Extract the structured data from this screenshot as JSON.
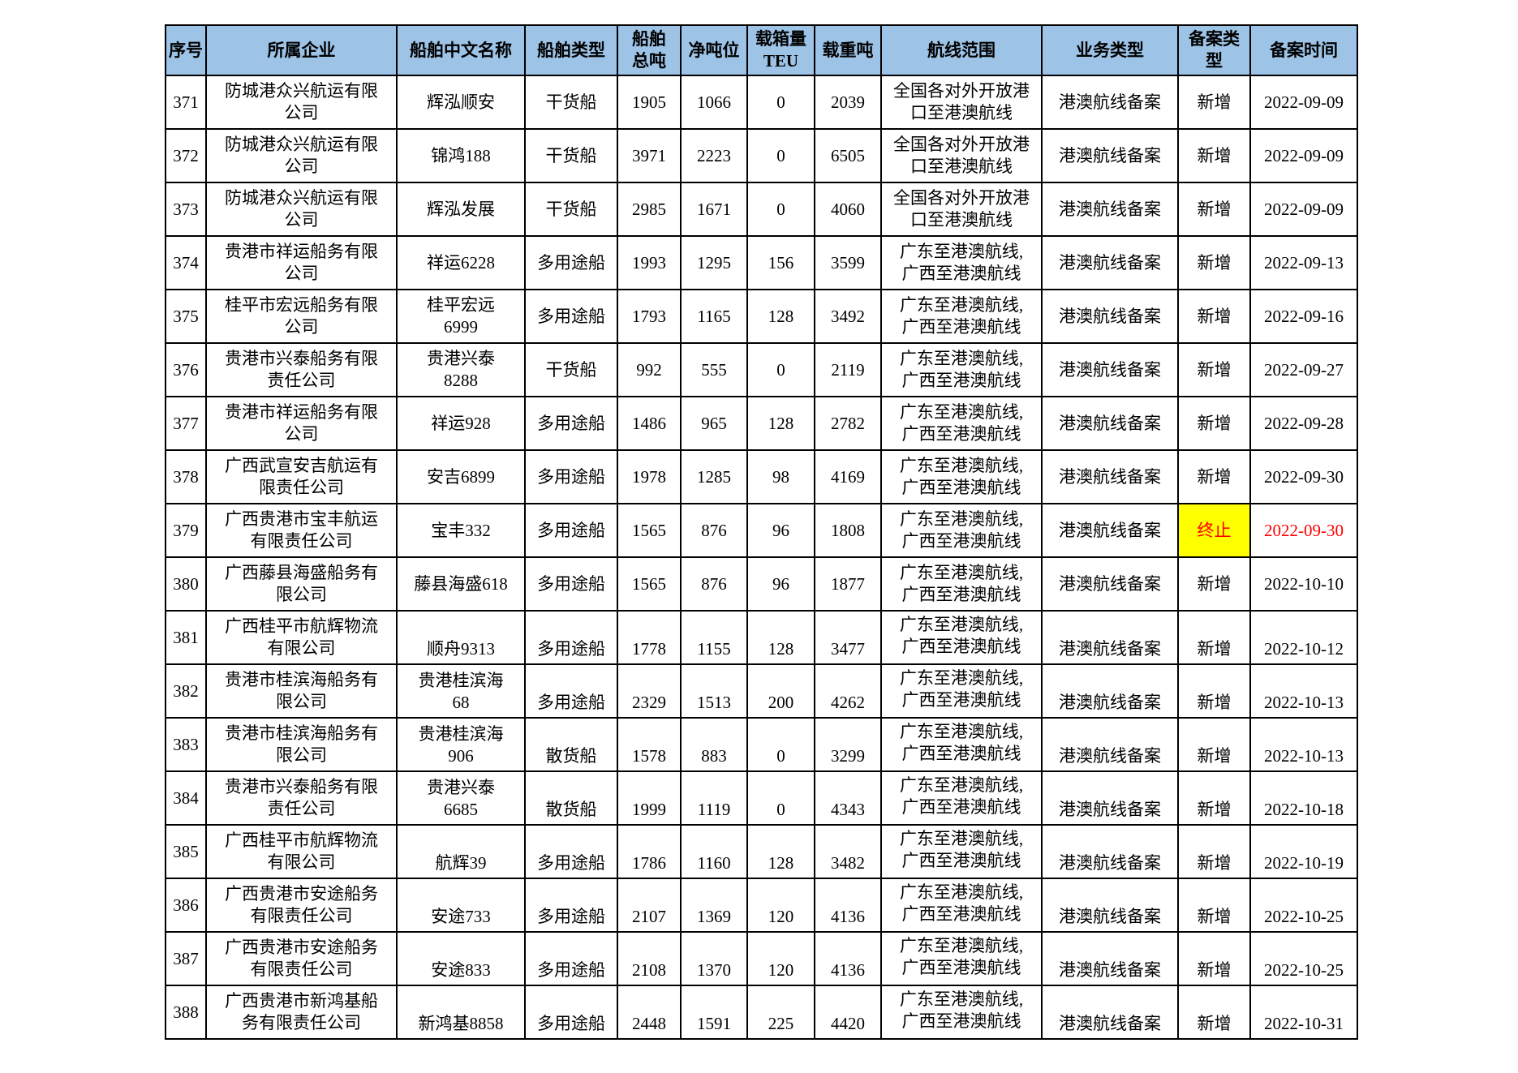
{
  "colors": {
    "header_bg": "#9DC3E6",
    "highlight_bg": "#FFFF00",
    "alert_text": "#FF0000",
    "border": "#000000"
  },
  "table": {
    "columns": [
      {
        "key": "index",
        "label": "序号"
      },
      {
        "key": "company",
        "label": "所属企业"
      },
      {
        "key": "ship_name",
        "label": "船舶中文名称"
      },
      {
        "key": "ship_type",
        "label": "船舶类型"
      },
      {
        "key": "gross_tonnage",
        "label": "船舶\n总吨"
      },
      {
        "key": "net_tonnage",
        "label": "净吨位"
      },
      {
        "key": "teu",
        "label": "载箱量\nTEU"
      },
      {
        "key": "dwt",
        "label": "载重吨"
      },
      {
        "key": "route",
        "label": "航线范围"
      },
      {
        "key": "business_type",
        "label": "业务类型"
      },
      {
        "key": "filing_type",
        "label": "备案类\n型"
      },
      {
        "key": "filing_date",
        "label": "备案时间"
      }
    ],
    "rows": [
      {
        "index": "371",
        "company": "防城港众兴航运有限\n公司",
        "ship_name": "辉泓顺安",
        "ship_type": "干货船",
        "gross_tonnage": "1905",
        "net_tonnage": "1066",
        "teu": "0",
        "dwt": "2039",
        "route": "全国各对外开放港\n口至港澳航线",
        "business_type": "港澳航线备案",
        "filing_type": "新增",
        "filing_date": "2022-09-09",
        "terminated": false,
        "bottom_aligned": false
      },
      {
        "index": "372",
        "company": "防城港众兴航运有限\n公司",
        "ship_name": "锦鸿188",
        "ship_type": "干货船",
        "gross_tonnage": "3971",
        "net_tonnage": "2223",
        "teu": "0",
        "dwt": "6505",
        "route": "全国各对外开放港\n口至港澳航线",
        "business_type": "港澳航线备案",
        "filing_type": "新增",
        "filing_date": "2022-09-09",
        "terminated": false,
        "bottom_aligned": false
      },
      {
        "index": "373",
        "company": "防城港众兴航运有限\n公司",
        "ship_name": "辉泓发展",
        "ship_type": "干货船",
        "gross_tonnage": "2985",
        "net_tonnage": "1671",
        "teu": "0",
        "dwt": "4060",
        "route": "全国各对外开放港\n口至港澳航线",
        "business_type": "港澳航线备案",
        "filing_type": "新增",
        "filing_date": "2022-09-09",
        "terminated": false,
        "bottom_aligned": false
      },
      {
        "index": "374",
        "company": "贵港市祥运船务有限\n公司",
        "ship_name": "祥运6228",
        "ship_type": "多用途船",
        "gross_tonnage": "1993",
        "net_tonnage": "1295",
        "teu": "156",
        "dwt": "3599",
        "route": "广东至港澳航线,\n广西至港澳航线",
        "business_type": "港澳航线备案",
        "filing_type": "新增",
        "filing_date": "2022-09-13",
        "terminated": false,
        "bottom_aligned": false
      },
      {
        "index": "375",
        "company": "桂平市宏远船务有限\n公司",
        "ship_name": "桂平宏远\n6999",
        "ship_type": "多用途船",
        "gross_tonnage": "1793",
        "net_tonnage": "1165",
        "teu": "128",
        "dwt": "3492",
        "route": "广东至港澳航线,\n广西至港澳航线",
        "business_type": "港澳航线备案",
        "filing_type": "新增",
        "filing_date": "2022-09-16",
        "terminated": false,
        "bottom_aligned": false
      },
      {
        "index": "376",
        "company": "贵港市兴泰船务有限\n责任公司",
        "ship_name": "贵港兴泰\n8288",
        "ship_type": "干货船",
        "gross_tonnage": "992",
        "net_tonnage": "555",
        "teu": "0",
        "dwt": "2119",
        "route": "广东至港澳航线,\n广西至港澳航线",
        "business_type": "港澳航线备案",
        "filing_type": "新增",
        "filing_date": "2022-09-27",
        "terminated": false,
        "bottom_aligned": false
      },
      {
        "index": "377",
        "company": "贵港市祥运船务有限\n公司",
        "ship_name": "祥运928",
        "ship_type": "多用途船",
        "gross_tonnage": "1486",
        "net_tonnage": "965",
        "teu": "128",
        "dwt": "2782",
        "route": "广东至港澳航线,\n广西至港澳航线",
        "business_type": "港澳航线备案",
        "filing_type": "新增",
        "filing_date": "2022-09-28",
        "terminated": false,
        "bottom_aligned": false
      },
      {
        "index": "378",
        "company": "广西武宣安吉航运有\n限责任公司",
        "ship_name": "安吉6899",
        "ship_type": "多用途船",
        "gross_tonnage": "1978",
        "net_tonnage": "1285",
        "teu": "98",
        "dwt": "4169",
        "route": "广东至港澳航线,\n广西至港澳航线",
        "business_type": "港澳航线备案",
        "filing_type": "新增",
        "filing_date": "2022-09-30",
        "terminated": false,
        "bottom_aligned": false
      },
      {
        "index": "379",
        "company": "广西贵港市宝丰航运\n有限责任公司",
        "ship_name": "宝丰332",
        "ship_type": "多用途船",
        "gross_tonnage": "1565",
        "net_tonnage": "876",
        "teu": "96",
        "dwt": "1808",
        "route": "广东至港澳航线,\n广西至港澳航线",
        "business_type": "港澳航线备案",
        "filing_type": "终止",
        "filing_date": "2022-09-30",
        "terminated": true,
        "bottom_aligned": false
      },
      {
        "index": "380",
        "company": "广西藤县海盛船务有\n限公司",
        "ship_name": "藤县海盛618",
        "ship_type": "多用途船",
        "gross_tonnage": "1565",
        "net_tonnage": "876",
        "teu": "96",
        "dwt": "1877",
        "route": "广东至港澳航线,\n广西至港澳航线",
        "business_type": "港澳航线备案",
        "filing_type": "新增",
        "filing_date": "2022-10-10",
        "terminated": false,
        "bottom_aligned": false
      },
      {
        "index": "381",
        "company": "广西桂平市航辉物流\n有限公司",
        "ship_name": "顺舟9313",
        "ship_type": "多用途船",
        "gross_tonnage": "1778",
        "net_tonnage": "1155",
        "teu": "128",
        "dwt": "3477",
        "route": "广东至港澳航线,\n广西至港澳航线",
        "business_type": "港澳航线备案",
        "filing_type": "新增",
        "filing_date": "2022-10-12",
        "terminated": false,
        "bottom_aligned": true
      },
      {
        "index": "382",
        "company": "贵港市桂滨海船务有\n限公司",
        "ship_name": "贵港桂滨海\n68",
        "ship_type": "多用途船",
        "gross_tonnage": "2329",
        "net_tonnage": "1513",
        "teu": "200",
        "dwt": "4262",
        "route": "广东至港澳航线,\n广西至港澳航线",
        "business_type": "港澳航线备案",
        "filing_type": "新增",
        "filing_date": "2022-10-13",
        "terminated": false,
        "bottom_aligned": true
      },
      {
        "index": "383",
        "company": "贵港市桂滨海船务有\n限公司",
        "ship_name": "贵港桂滨海\n906",
        "ship_type": "散货船",
        "gross_tonnage": "1578",
        "net_tonnage": "883",
        "teu": "0",
        "dwt": "3299",
        "route": "广东至港澳航线,\n广西至港澳航线",
        "business_type": "港澳航线备案",
        "filing_type": "新增",
        "filing_date": "2022-10-13",
        "terminated": false,
        "bottom_aligned": true
      },
      {
        "index": "384",
        "company": "贵港市兴泰船务有限\n责任公司",
        "ship_name": "贵港兴泰\n6685",
        "ship_type": "散货船",
        "gross_tonnage": "1999",
        "net_tonnage": "1119",
        "teu": "0",
        "dwt": "4343",
        "route": "广东至港澳航线,\n广西至港澳航线",
        "business_type": "港澳航线备案",
        "filing_type": "新增",
        "filing_date": "2022-10-18",
        "terminated": false,
        "bottom_aligned": true
      },
      {
        "index": "385",
        "company": "广西桂平市航辉物流\n有限公司",
        "ship_name": "航辉39",
        "ship_type": "多用途船",
        "gross_tonnage": "1786",
        "net_tonnage": "1160",
        "teu": "128",
        "dwt": "3482",
        "route": "广东至港澳航线,\n广西至港澳航线",
        "business_type": "港澳航线备案",
        "filing_type": "新增",
        "filing_date": "2022-10-19",
        "terminated": false,
        "bottom_aligned": true
      },
      {
        "index": "386",
        "company": "广西贵港市安途船务\n有限责任公司",
        "ship_name": "安途733",
        "ship_type": "多用途船",
        "gross_tonnage": "2107",
        "net_tonnage": "1369",
        "teu": "120",
        "dwt": "4136",
        "route": "广东至港澳航线,\n广西至港澳航线",
        "business_type": "港澳航线备案",
        "filing_type": "新增",
        "filing_date": "2022-10-25",
        "terminated": false,
        "bottom_aligned": true
      },
      {
        "index": "387",
        "company": "广西贵港市安途船务\n有限责任公司",
        "ship_name": "安途833",
        "ship_type": "多用途船",
        "gross_tonnage": "2108",
        "net_tonnage": "1370",
        "teu": "120",
        "dwt": "4136",
        "route": "广东至港澳航线,\n广西至港澳航线",
        "business_type": "港澳航线备案",
        "filing_type": "新增",
        "filing_date": "2022-10-25",
        "terminated": false,
        "bottom_aligned": true
      },
      {
        "index": "388",
        "company": "广西贵港市新鸿基船\n务有限责任公司",
        "ship_name": "新鸿基8858",
        "ship_type": "多用途船",
        "gross_tonnage": "2448",
        "net_tonnage": "1591",
        "teu": "225",
        "dwt": "4420",
        "route": "广东至港澳航线,\n广西至港澳航线",
        "business_type": "港澳航线备案",
        "filing_type": "新增",
        "filing_date": "2022-10-31",
        "terminated": false,
        "bottom_aligned": true
      }
    ]
  }
}
